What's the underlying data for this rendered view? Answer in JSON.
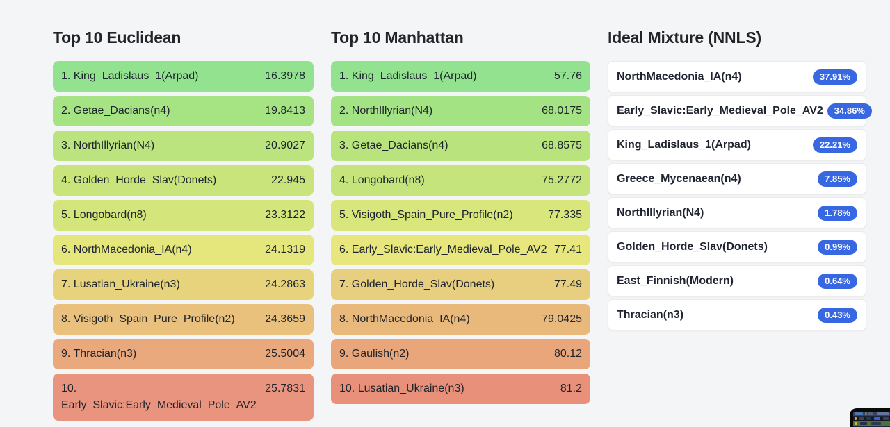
{
  "page": {
    "background": "#f4f5f6"
  },
  "columns": {
    "euclidean": {
      "title": "Top 10 Euclidean",
      "rows": [
        {
          "rank": "1.",
          "name": "King_Ladislaus_1(Arpad)",
          "value": "16.3978",
          "color": "#93e28f"
        },
        {
          "rank": "2.",
          "name": "Getae_Dacians(n4)",
          "value": "19.8413",
          "color": "#a5e383"
        },
        {
          "rank": "3.",
          "name": "NorthIllyrian(N4)",
          "value": "20.9027",
          "color": "#bce47e"
        },
        {
          "rank": "4.",
          "name": "Golden_Horde_Slav(Donets)",
          "value": "22.945",
          "color": "#c8e47b"
        },
        {
          "rank": "5.",
          "name": "Longobard(n8)",
          "value": "23.3122",
          "color": "#d4e67b"
        },
        {
          "rank": "6.",
          "name": "NorthMacedonia_IA(n4)",
          "value": "24.1319",
          "color": "#e5e77d"
        },
        {
          "rank": "7.",
          "name": "Lusatian_Ukraine(n3)",
          "value": "24.2863",
          "color": "#e6d37b"
        },
        {
          "rank": "8.",
          "name": "Visigoth_Spain_Pure_Profile(n2)",
          "value": "24.3659",
          "color": "#eac17c"
        },
        {
          "rank": "9.",
          "name": "Thracian(n3)",
          "value": "25.5004",
          "color": "#eaa87d"
        },
        {
          "rank": "10.",
          "name": "Early_Slavic:Early_Medieval_Pole_AV2",
          "value": "25.7831",
          "color": "#e9947e"
        }
      ]
    },
    "manhattan": {
      "title": "Top 10 Manhattan",
      "rows": [
        {
          "rank": "1.",
          "name": "King_Ladislaus_1(Arpad)",
          "value": "57.76",
          "color": "#93e28f"
        },
        {
          "rank": "2.",
          "name": "NorthIllyrian(N4)",
          "value": "68.0175",
          "color": "#a4e383"
        },
        {
          "rank": "3.",
          "name": "Getae_Dacians(n4)",
          "value": "68.8575",
          "color": "#b9e47d"
        },
        {
          "rank": "4.",
          "name": "Longobard(n8)",
          "value": "75.2772",
          "color": "#c6e47c"
        },
        {
          "rank": "5.",
          "name": "Visigoth_Spain_Pure_Profile(n2)",
          "value": "77.335",
          "color": "#d8e67b"
        },
        {
          "rank": "6.",
          "name": "Early_Slavic:Early_Medieval_Pole_AV2",
          "value": "77.41",
          "color": "#e7e77d"
        },
        {
          "rank": "7.",
          "name": "Golden_Horde_Slav(Donets)",
          "value": "77.49",
          "color": "#e8cf7f"
        },
        {
          "rank": "8.",
          "name": "NorthMacedonia_IA(n4)",
          "value": "79.0425",
          "color": "#e9b97c"
        },
        {
          "rank": "9.",
          "name": "Gaulish(n2)",
          "value": "80.12",
          "color": "#e9a67b"
        },
        {
          "rank": "10.",
          "name": "Lusatian_Ukraine(n3)",
          "value": "81.2",
          "color": "#e8907a"
        }
      ]
    },
    "mixture": {
      "title": "Ideal Mixture (NNLS)",
      "badge_color": "#3867e2",
      "items": [
        {
          "name": "NorthMacedonia_IA(n4)",
          "percent": "37.91%"
        },
        {
          "name": "Early_Slavic:Early_Medieval_Pole_AV2",
          "percent": "34.86%"
        },
        {
          "name": "King_Ladislaus_1(Arpad)",
          "percent": "22.21%"
        },
        {
          "name": "Greece_Mycenaean(n4)",
          "percent": "7.85%"
        },
        {
          "name": "NorthIllyrian(N4)",
          "percent": "1.78%"
        },
        {
          "name": "Golden_Horde_Slav(Donets)",
          "percent": "0.99%"
        },
        {
          "name": "East_Finnish(Modern)",
          "percent": "0.64%"
        },
        {
          "name": "Thracian(n3)",
          "percent": "0.43%"
        }
      ]
    }
  },
  "thumbnail": {
    "frame_color": "#0a0a0b",
    "screen_color": "#1d2638",
    "accent_blue": "#4d77b3",
    "accent_green": "#4e6f3e",
    "accent_yellow": "#c8a53e"
  }
}
